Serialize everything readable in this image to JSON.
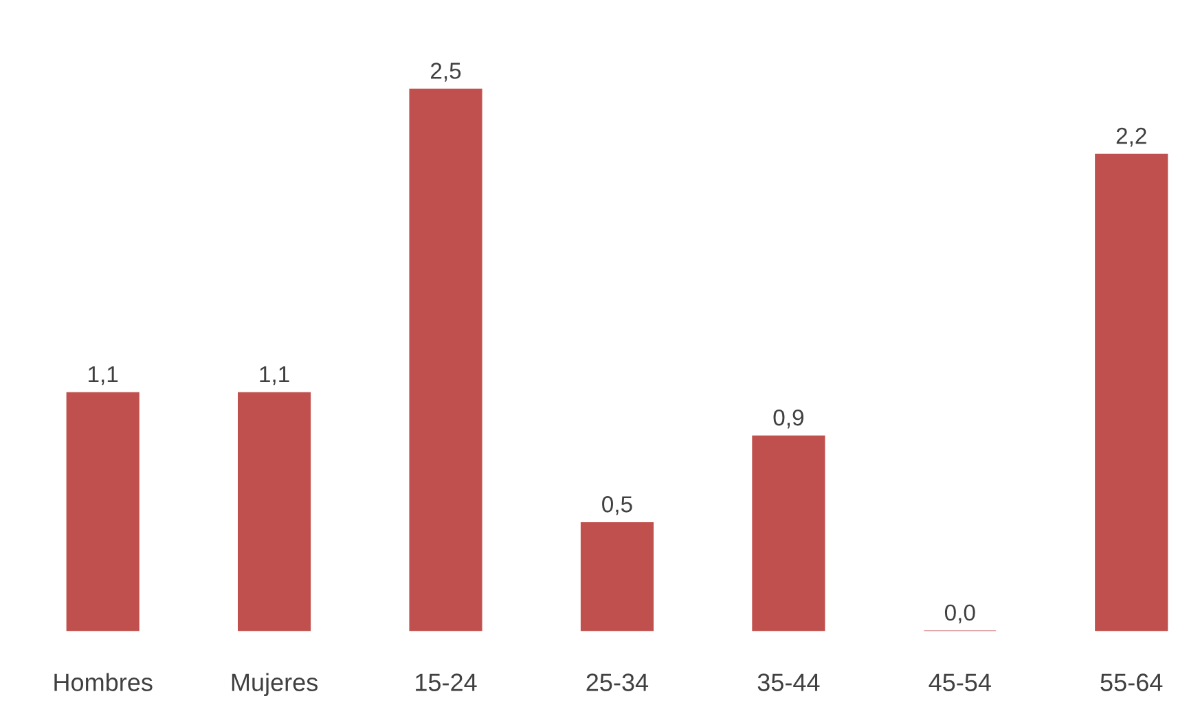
{
  "chart_data": {
    "type": "bar",
    "categories": [
      "Hombres",
      "Mujeres",
      "15-24",
      "25-34",
      "35-44",
      "45-54",
      "55-64"
    ],
    "values": [
      1.1,
      1.1,
      2.5,
      0.5,
      0.9,
      0.0,
      2.2
    ],
    "value_labels": [
      "1,1",
      "1,1",
      "2,5",
      "0,5",
      "0,9",
      "0,0",
      "2,2"
    ],
    "color": "#c0504d",
    "grid": false,
    "legend": false
  }
}
